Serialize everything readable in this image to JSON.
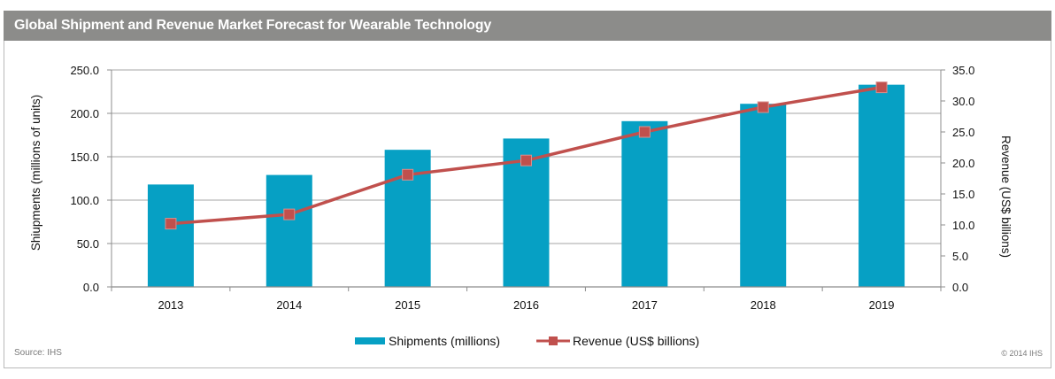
{
  "title": "Global Shipment and Revenue Market Forecast for Wearable Technology",
  "source": "Source: IHS",
  "copyright": "© 2014 IHS",
  "colors": {
    "bar": "#06a0c4",
    "line": "#c0504d",
    "header": "#8c8c8a",
    "grid": "#a6a6a6"
  },
  "chart_data": {
    "type": "bar",
    "categories": [
      "2013",
      "2014",
      "2015",
      "2016",
      "2017",
      "2018",
      "2019"
    ],
    "series": [
      {
        "name": "Shipments (millions)",
        "type": "bar",
        "axis": "left",
        "values": [
          118,
          129,
          158,
          171,
          191,
          211,
          233
        ]
      },
      {
        "name": "Revenue (US$ billions)",
        "type": "line",
        "axis": "right",
        "values": [
          10.2,
          11.7,
          18.1,
          20.4,
          25.0,
          29.0,
          32.2
        ]
      }
    ],
    "ylabel": "Shiupments (millions of units)",
    "y2label": "Revenue (US$ billions)",
    "ylim": [
      0,
      250
    ],
    "y2lim": [
      0,
      35
    ],
    "yticks": [
      "250.0",
      "200.0",
      "150.0",
      "100.0",
      "50.0",
      "0.0"
    ],
    "y2ticks": [
      "35.0",
      "30.0",
      "25.0",
      "20.0",
      "15.0",
      "10.0",
      "5.0",
      "0.0"
    ],
    "grid": true,
    "legend_position": "bottom"
  }
}
